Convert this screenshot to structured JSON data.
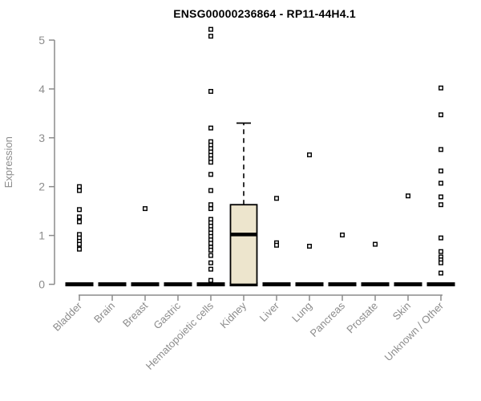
{
  "chart_data": {
    "type": "scatter",
    "subtype": "boxplot-with-points",
    "title": "ENSG00000236864 - RP11-44H4.1",
    "ylabel": "Expression",
    "ylim": [
      0,
      5
    ],
    "yticks": [
      0,
      1,
      2,
      3,
      4,
      5
    ],
    "grid": "off",
    "legend": "none",
    "categories": [
      "Bladder",
      "Brain",
      "Breast",
      "Gastric",
      "Hematopoietic cells",
      "Kidney",
      "Liver",
      "Lung",
      "Pancreas",
      "Prostate",
      "Skin",
      "Unknown / Other"
    ],
    "zero_dash_categories": [
      "Bladder",
      "Brain",
      "Breast",
      "Gastric",
      "Hematopoietic cells",
      "Kidney",
      "Liver",
      "Lung",
      "Pancreas",
      "Prostate",
      "Skin",
      "Unknown / Other"
    ],
    "points": {
      "Bladder": [
        2.0,
        1.92,
        1.53,
        1.38,
        1.28,
        1.02,
        0.95,
        0.88,
        0.82,
        0.72
      ],
      "Brain": [],
      "Breast": [
        1.55
      ],
      "Gastric": [],
      "Hematopoietic cells": [
        5.22,
        5.08,
        3.95,
        3.2,
        2.92,
        2.85,
        2.78,
        2.71,
        2.64,
        2.57,
        2.5,
        2.25,
        1.92,
        1.63,
        1.55,
        1.33,
        1.26,
        1.19,
        1.12,
        1.05,
        0.98,
        0.91,
        0.84,
        0.76,
        0.7,
        0.59,
        0.44,
        0.31,
        0.08
      ],
      "Kidney": [],
      "Liver": [
        1.76,
        0.85,
        0.8
      ],
      "Lung": [
        2.65,
        0.78
      ],
      "Pancreas": [
        1.01
      ],
      "Prostate": [
        0.82
      ],
      "Skin": [
        1.81
      ],
      "Unknown / Other": [
        4.02,
        3.47,
        2.76,
        2.32,
        2.07,
        1.79,
        1.63,
        0.95,
        0.67,
        0.56,
        0.5,
        0.44,
        0.23
      ]
    },
    "box": {
      "category": "Kidney",
      "q1": 0,
      "median": 1.02,
      "q3": 1.63,
      "whisker_low": 0,
      "whisker_high": 3.3
    },
    "colors": {
      "box_fill": "#EDE5CD",
      "box_border": "#000000",
      "point_stroke": "#000000",
      "point_fill": "#FFFFFF",
      "zero_dash": "#000000",
      "axis": "#8C8C8C",
      "title": "#000000"
    }
  }
}
